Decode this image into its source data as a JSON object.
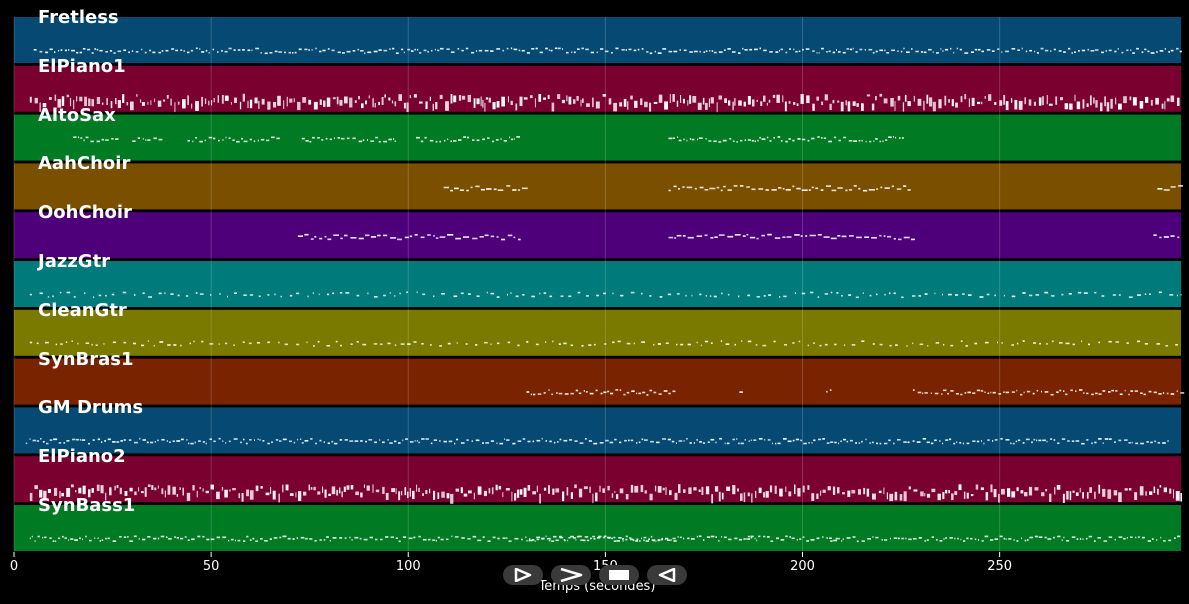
{
  "timeline": {
    "x_axis_title": "Temps (secondes)",
    "ticks": [
      "0",
      "50",
      "100",
      "150",
      "200",
      "250"
    ],
    "tick_values": [
      0,
      50,
      100,
      150,
      200,
      250
    ],
    "max_seconds": 296
  },
  "tracks": [
    {
      "name": "Fretless",
      "color": "#064a73",
      "pattern": "dense_low"
    },
    {
      "name": "ElPiano1",
      "color": "#7a0030",
      "pattern": "dense_tall"
    },
    {
      "name": "AltoSax",
      "color": "#007a23",
      "pattern": "sax"
    },
    {
      "name": "AahChoir",
      "color": "#7a5000",
      "pattern": "choir"
    },
    {
      "name": "OohChoir",
      "color": "#4e007a",
      "pattern": "ooh"
    },
    {
      "name": "JazzGtr",
      "color": "#007a7a",
      "pattern": "guitar"
    },
    {
      "name": "CleanGtr",
      "color": "#7a7a00",
      "pattern": "guitar"
    },
    {
      "name": "SynBras1",
      "color": "#7a2300",
      "pattern": "brass"
    },
    {
      "name": "GM Drums",
      "color": "#064a73",
      "pattern": "drums"
    },
    {
      "name": "ElPiano2",
      "color": "#7a0030",
      "pattern": "dense_tall"
    },
    {
      "name": "SynBass1",
      "color": "#007a23",
      "pattern": "bass"
    }
  ],
  "controls": [
    {
      "name": "play-button",
      "icon": "play-outline-icon"
    },
    {
      "name": "fast-forward-button",
      "icon": "chevron-right-icon"
    },
    {
      "name": "stop-button",
      "icon": "stop-icon"
    },
    {
      "name": "rewind-button",
      "icon": "play-reverse-icon"
    }
  ]
}
